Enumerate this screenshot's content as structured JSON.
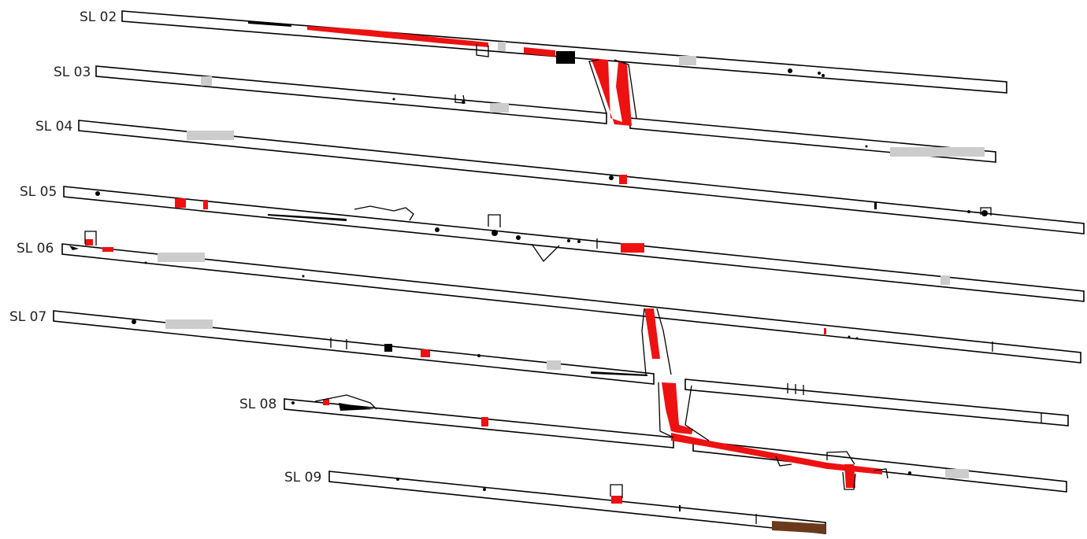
{
  "figure": {
    "colors": {
      "background": "#ffffff",
      "outline": "#000000",
      "red_feature": "#ee1111",
      "grey_feature": "#cccccc",
      "black_feature": "#000000",
      "brown_feature": "#6b3a1a"
    }
  },
  "sections": [
    {
      "id": "SL02",
      "label": "SL 02"
    },
    {
      "id": "SL03",
      "label": "SL 03"
    },
    {
      "id": "SL04",
      "label": "SL 04"
    },
    {
      "id": "SL05",
      "label": "SL 05"
    },
    {
      "id": "SL06",
      "label": "SL 06"
    },
    {
      "id": "SL07",
      "label": "SL 07"
    },
    {
      "id": "SL08",
      "label": "SL 08"
    },
    {
      "id": "SL09",
      "label": "SL 09"
    }
  ]
}
